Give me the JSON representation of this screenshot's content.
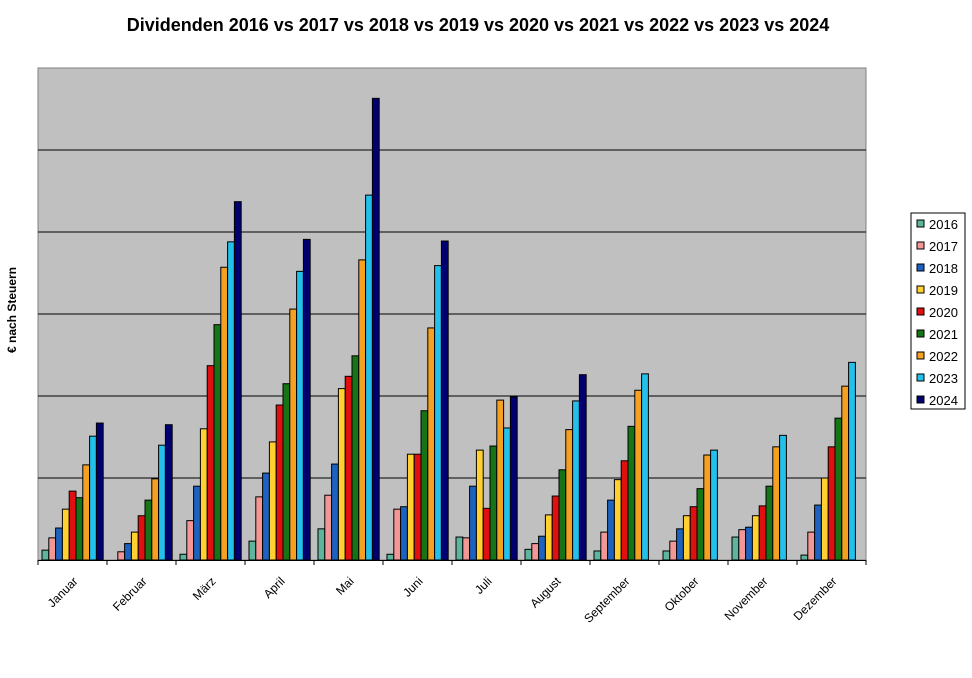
{
  "chart_data": {
    "type": "bar",
    "title": "Dividenden 2016 vs 2017 vs 2018 vs 2019 vs 2020 vs 2021 vs 2022 vs 2023 vs 2024",
    "xlabel": "",
    "ylabel": "€ nach Steuern",
    "ylim": [
      0,
      6
    ],
    "y_units_note": "no y tick labels shown; values in gridline units",
    "grid": true,
    "legend_position": "right",
    "categories": [
      "Januar",
      "Februar",
      "März",
      "April",
      "Mai",
      "Juni",
      "Juli",
      "August",
      "September",
      "Oktober",
      "November",
      "Dezember"
    ],
    "series": [
      {
        "name": "2016",
        "color": "#5cb59c",
        "values": [
          0.12,
          0,
          0.07,
          0.23,
          0.38,
          0.07,
          0.28,
          0.13,
          0.11,
          0.11,
          0.28,
          0.06
        ]
      },
      {
        "name": "2017",
        "color": "#f29696",
        "values": [
          0.27,
          0.1,
          0.48,
          0.77,
          0.79,
          0.62,
          0.27,
          0.2,
          0.34,
          0.23,
          0.37,
          0.34
        ]
      },
      {
        "name": "2018",
        "color": "#1d62c0",
        "values": [
          0.39,
          0.2,
          0.9,
          1.06,
          1.17,
          0.65,
          0.9,
          0.29,
          0.73,
          0.38,
          0.4,
          0.67
        ]
      },
      {
        "name": "2019",
        "color": "#ffd030",
        "values": [
          0.62,
          0.34,
          1.6,
          1.44,
          2.09,
          1.29,
          1.34,
          0.55,
          0.98,
          0.54,
          0.54,
          1.0
        ]
      },
      {
        "name": "2020",
        "color": "#e01010",
        "values": [
          0.84,
          0.54,
          2.37,
          1.89,
          2.24,
          1.29,
          0.63,
          0.78,
          1.21,
          0.65,
          0.66,
          1.38
        ]
      },
      {
        "name": "2021",
        "color": "#167316",
        "values": [
          0.76,
          0.73,
          2.87,
          2.15,
          2.49,
          1.82,
          1.39,
          1.1,
          1.63,
          0.87,
          0.9,
          1.73
        ]
      },
      {
        "name": "2022",
        "color": "#f5a020",
        "values": [
          1.16,
          0.99,
          3.57,
          3.06,
          3.66,
          2.83,
          1.95,
          1.59,
          2.07,
          1.28,
          1.38,
          2.12
        ]
      },
      {
        "name": "2023",
        "color": "#22c0ea",
        "values": [
          1.51,
          1.4,
          3.88,
          3.52,
          4.45,
          3.59,
          1.61,
          1.94,
          2.27,
          1.34,
          1.52,
          2.41
        ]
      },
      {
        "name": "2024",
        "color": "#000070",
        "values": [
          1.67,
          1.65,
          4.37,
          3.91,
          5.63,
          3.89,
          1.99,
          2.26,
          null,
          null,
          null,
          null
        ]
      }
    ]
  }
}
